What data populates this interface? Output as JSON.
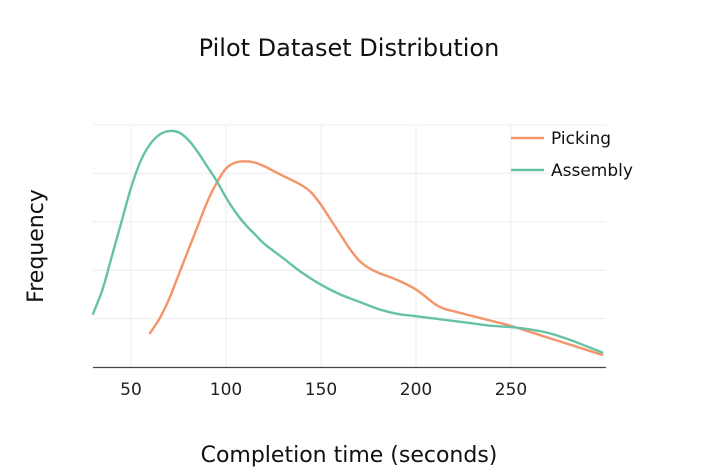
{
  "chart_data": {
    "type": "line",
    "title": "Pilot Dataset Distribution",
    "xlabel": "Completion time (seconds)",
    "ylabel": "Frequency",
    "xlim": [
      30,
      300
    ],
    "ylim": [
      0,
      100
    ],
    "x_ticks": [
      50,
      100,
      150,
      200,
      250
    ],
    "y_grid": [
      20,
      40,
      60,
      80,
      100
    ],
    "y_tick_labels_visible": false,
    "grid": true,
    "legend_position": "top-right",
    "series": [
      {
        "name": "Picking",
        "color": "#f4946a",
        "points": [
          [
            60,
            14
          ],
          [
            65,
            20
          ],
          [
            70,
            28
          ],
          [
            75,
            38
          ],
          [
            80,
            48
          ],
          [
            85,
            58
          ],
          [
            90,
            68
          ],
          [
            95,
            76
          ],
          [
            100,
            82
          ],
          [
            105,
            84.5
          ],
          [
            110,
            85
          ],
          [
            115,
            84.5
          ],
          [
            120,
            83
          ],
          [
            125,
            81
          ],
          [
            130,
            79
          ],
          [
            140,
            75
          ],
          [
            145,
            72
          ],
          [
            150,
            67
          ],
          [
            155,
            61
          ],
          [
            160,
            55
          ],
          [
            165,
            49
          ],
          [
            170,
            44
          ],
          [
            175,
            41
          ],
          [
            180,
            39
          ],
          [
            190,
            36
          ],
          [
            200,
            32
          ],
          [
            210,
            26
          ],
          [
            215,
            24
          ],
          [
            220,
            23
          ],
          [
            230,
            21
          ],
          [
            240,
            19
          ],
          [
            250,
            17
          ],
          [
            260,
            14.5
          ],
          [
            270,
            12
          ],
          [
            280,
            9.5
          ],
          [
            290,
            7
          ],
          [
            298,
            5
          ]
        ]
      },
      {
        "name": "Assembly",
        "color": "#66c2a5",
        "points": [
          [
            30,
            22
          ],
          [
            35,
            32
          ],
          [
            40,
            46
          ],
          [
            45,
            60
          ],
          [
            50,
            74
          ],
          [
            55,
            85
          ],
          [
            60,
            92
          ],
          [
            65,
            96
          ],
          [
            70,
            97.5
          ],
          [
            75,
            97
          ],
          [
            80,
            94
          ],
          [
            85,
            89
          ],
          [
            90,
            83
          ],
          [
            95,
            77
          ],
          [
            100,
            70
          ],
          [
            105,
            64
          ],
          [
            110,
            59
          ],
          [
            115,
            55
          ],
          [
            120,
            51
          ],
          [
            130,
            45
          ],
          [
            140,
            39
          ],
          [
            150,
            34
          ],
          [
            160,
            30
          ],
          [
            170,
            27
          ],
          [
            180,
            24
          ],
          [
            190,
            22
          ],
          [
            200,
            21
          ],
          [
            210,
            20
          ],
          [
            220,
            19
          ],
          [
            230,
            18
          ],
          [
            240,
            17
          ],
          [
            250,
            16.5
          ],
          [
            260,
            15.5
          ],
          [
            270,
            14
          ],
          [
            280,
            11.5
          ],
          [
            290,
            8.5
          ],
          [
            298,
            6
          ]
        ]
      }
    ]
  }
}
